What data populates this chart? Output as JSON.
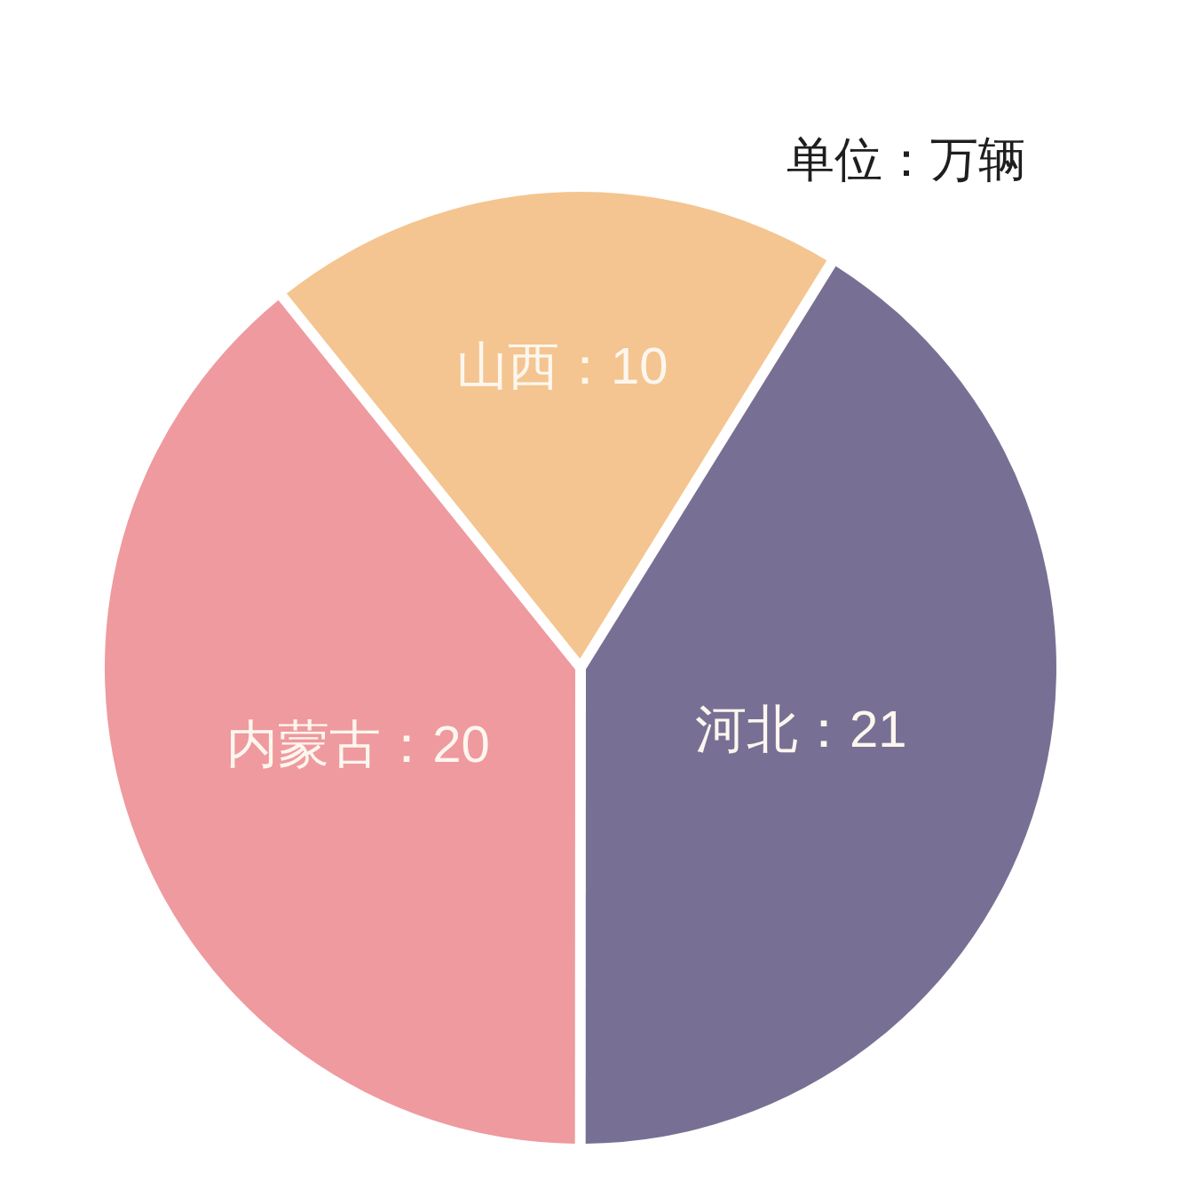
{
  "chart_data": {
    "type": "pie",
    "categories": [
      "山西",
      "河北",
      "内蒙古"
    ],
    "values": [
      10,
      21,
      20
    ],
    "colors": [
      "#f4c590",
      "#777094",
      "#ee9a9f"
    ],
    "value_labels": [
      "：10",
      "：21",
      "：20"
    ],
    "annotations": [
      "单位：万辆"
    ]
  }
}
